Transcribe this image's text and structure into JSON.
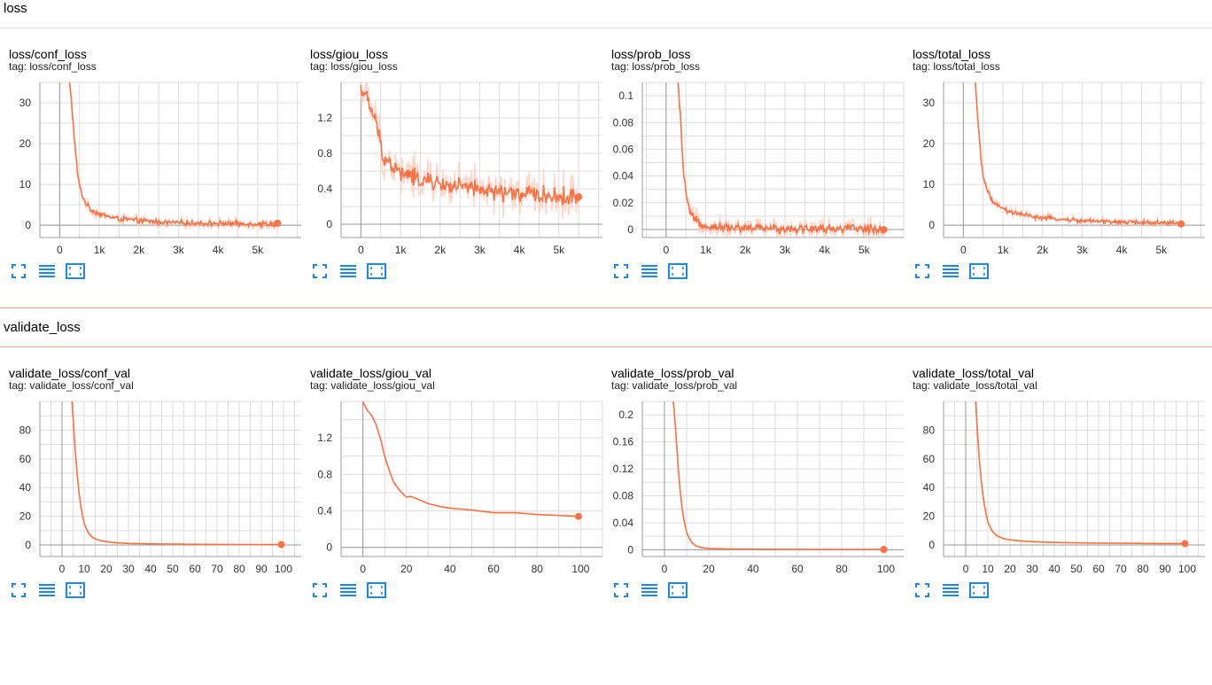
{
  "colors": {
    "accent": "#ff7043",
    "accent_light": "#ffccbc",
    "rule_gray": "#e0e0e0",
    "rule_orange": "#f4a48a",
    "grid": "#dddddd",
    "axis": "#9e9e9e",
    "button_blue": "#1e88e5"
  },
  "icons": [
    "fullscreen-icon",
    "data-table-icon",
    "fit-domain-icon"
  ],
  "sections": [
    {
      "title": "loss",
      "cards": [
        {
          "title": "loss/conf_loss",
          "tag": "tag: loss/conf_loss"
        },
        {
          "title": "loss/giou_loss",
          "tag": "tag: loss/giou_loss"
        },
        {
          "title": "loss/prob_loss",
          "tag": "tag: loss/prob_loss"
        },
        {
          "title": "loss/total_loss",
          "tag": "tag: loss/total_loss"
        }
      ]
    },
    {
      "title": "validate_loss",
      "cards": [
        {
          "title": "validate_loss/conf_val",
          "tag": "tag: validate_loss/conf_val"
        },
        {
          "title": "validate_loss/giou_val",
          "tag": "tag: validate_loss/giou_val"
        },
        {
          "title": "validate_loss/prob_val",
          "tag": "tag: validate_loss/prob_val"
        },
        {
          "title": "validate_loss/total_val",
          "tag": "tag: validate_loss/total_val"
        }
      ]
    }
  ],
  "chart_data": [
    {
      "type": "line",
      "title": "loss/conf_loss",
      "xlim": [
        -500,
        6100
      ],
      "ylim": [
        -3,
        35
      ],
      "xticks": [
        0,
        1000,
        2000,
        3000,
        4000,
        5000
      ],
      "xtick_labels": [
        "0",
        "1k",
        "2k",
        "3k",
        "4k",
        "5k"
      ],
      "yticks": [
        0,
        10,
        20,
        30
      ],
      "ytick_labels": [
        "0",
        "10",
        "20",
        "30"
      ],
      "series": [
        {
          "x": [
            250,
            300,
            350,
            400,
            450,
            500,
            600,
            700,
            800,
            1000,
            1200,
            1500,
            2000,
            2500,
            3000,
            3500,
            4000,
            4500,
            5000,
            5500
          ],
          "y": [
            35,
            30,
            24,
            18,
            13,
            9.5,
            6.5,
            4.8,
            3.8,
            2.8,
            2.2,
            1.6,
            1.1,
            0.8,
            0.6,
            0.5,
            0.45,
            0.4,
            0.35,
            0.3
          ]
        }
      ],
      "noise": 0.35,
      "grid": true
    },
    {
      "type": "line",
      "title": "loss/giou_loss",
      "xlim": [
        -500,
        6100
      ],
      "ylim": [
        -0.15,
        1.6
      ],
      "xticks": [
        0,
        1000,
        2000,
        3000,
        4000,
        5000
      ],
      "xtick_labels": [
        "0",
        "1k",
        "2k",
        "3k",
        "4k",
        "5k"
      ],
      "yticks": [
        0,
        0.4,
        0.8,
        1.2
      ],
      "ytick_labels": [
        "0",
        "0.4",
        "0.8",
        "1.2"
      ],
      "series": [
        {
          "x": [
            0,
            100,
            200,
            300,
            400,
            500,
            600,
            800,
            1000,
            1200,
            1500,
            2000,
            2500,
            3000,
            3500,
            4000,
            4500,
            5000,
            5500
          ],
          "y": [
            1.55,
            1.45,
            1.35,
            1.25,
            1.1,
            0.9,
            0.75,
            0.65,
            0.58,
            0.55,
            0.5,
            0.45,
            0.42,
            0.38,
            0.36,
            0.34,
            0.33,
            0.31,
            0.3
          ]
        }
      ],
      "noise": 0.06,
      "grid": true
    },
    {
      "type": "line",
      "title": "loss/prob_loss",
      "xlim": [
        -600,
        6000
      ],
      "ylim": [
        -0.006,
        0.11
      ],
      "xticks": [
        0,
        1000,
        2000,
        3000,
        4000,
        5000
      ],
      "xtick_labels": [
        "0",
        "1k",
        "2k",
        "3k",
        "4k",
        "5k"
      ],
      "yticks": [
        0,
        0.02,
        0.04,
        0.06,
        0.08,
        0.1
      ],
      "ytick_labels": [
        "0",
        "0.02",
        "0.04",
        "0.06",
        "0.08",
        "0.1"
      ],
      "series": [
        {
          "x": [
            300,
            350,
            400,
            450,
            500,
            550,
            600,
            700,
            800,
            1000,
            1500,
            2000,
            3000,
            4000,
            5000,
            5500
          ],
          "y": [
            0.11,
            0.09,
            0.06,
            0.04,
            0.028,
            0.018,
            0.012,
            0.008,
            0.005,
            0.003,
            0.0015,
            0.001,
            0.0008,
            0.0006,
            0.0005,
            0.0004
          ]
        }
      ],
      "noise": 0.002,
      "grid": true
    },
    {
      "type": "line",
      "title": "loss/total_loss",
      "xlim": [
        -500,
        6100
      ],
      "ylim": [
        -3,
        35
      ],
      "xticks": [
        0,
        1000,
        2000,
        3000,
        4000,
        5000
      ],
      "xtick_labels": [
        "0",
        "1k",
        "2k",
        "3k",
        "4k",
        "5k"
      ],
      "yticks": [
        0,
        10,
        20,
        30
      ],
      "ytick_labels": [
        "0",
        "10",
        "20",
        "30"
      ],
      "series": [
        {
          "x": [
            300,
            350,
            400,
            450,
            500,
            600,
            700,
            800,
            1000,
            1200,
            1500,
            2000,
            2500,
            3000,
            3500,
            4000,
            4500,
            5000,
            5500
          ],
          "y": [
            35,
            28,
            22,
            16,
            12,
            8.5,
            6.5,
            5.2,
            4,
            3.2,
            2.5,
            1.8,
            1.4,
            1.1,
            0.9,
            0.8,
            0.7,
            0.6,
            0.5
          ]
        }
      ],
      "noise": 0.3,
      "grid": true
    },
    {
      "type": "line",
      "title": "validate_loss/conf_val",
      "xlim": [
        -10,
        108
      ],
      "ylim": [
        -8,
        100
      ],
      "xticks": [
        0,
        10,
        20,
        30,
        40,
        50,
        60,
        70,
        80,
        90,
        100
      ],
      "xtick_labels": [
        "0",
        "10",
        "20",
        "30",
        "40",
        "50",
        "60",
        "70",
        "80",
        "90",
        "100"
      ],
      "yticks": [
        0,
        20,
        40,
        60,
        80
      ],
      "ytick_labels": [
        "0",
        "20",
        "40",
        "60",
        "80"
      ],
      "series": [
        {
          "x": [
            4.5,
            5,
            6,
            7,
            8,
            9,
            10,
            12,
            14,
            17,
            20,
            25,
            30,
            40,
            50,
            60,
            70,
            80,
            90,
            99
          ],
          "y": [
            100,
            88,
            65,
            46,
            32,
            22,
            15,
            8,
            5,
            3.2,
            2.3,
            1.5,
            1.1,
            0.8,
            0.6,
            0.5,
            0.4,
            0.35,
            0.3,
            0.3
          ]
        }
      ],
      "noise": 0,
      "grid": true
    },
    {
      "type": "line",
      "title": "validate_loss/giou_val",
      "xlim": [
        -10,
        110
      ],
      "ylim": [
        -0.1,
        1.6
      ],
      "xticks": [
        0,
        20,
        40,
        60,
        80,
        100
      ],
      "xtick_labels": [
        "0",
        "20",
        "40",
        "60",
        "80",
        "100"
      ],
      "yticks": [
        0,
        0.4,
        0.8,
        1.2
      ],
      "ytick_labels": [
        "0",
        "0.4",
        "0.8",
        "1.2"
      ],
      "series": [
        {
          "x": [
            0,
            2,
            4,
            6,
            8,
            10,
            12,
            14,
            17,
            20,
            22,
            25,
            30,
            35,
            40,
            50,
            60,
            70,
            80,
            90,
            99
          ],
          "y": [
            1.6,
            1.5,
            1.45,
            1.35,
            1.2,
            1.0,
            0.85,
            0.72,
            0.62,
            0.55,
            0.56,
            0.53,
            0.48,
            0.45,
            0.43,
            0.41,
            0.38,
            0.38,
            0.36,
            0.35,
            0.34
          ]
        }
      ],
      "noise": 0,
      "grid": true
    },
    {
      "type": "line",
      "title": "validate_loss/prob_val",
      "xlim": [
        -10,
        108
      ],
      "ylim": [
        -0.01,
        0.22
      ],
      "xticks": [
        0,
        20,
        40,
        60,
        80,
        100
      ],
      "xtick_labels": [
        "0",
        "20",
        "40",
        "60",
        "80",
        "100"
      ],
      "yticks": [
        0,
        0.04,
        0.08,
        0.12,
        0.16,
        0.2
      ],
      "ytick_labels": [
        "0",
        "0.04",
        "0.08",
        "0.12",
        "0.16",
        "0.2"
      ],
      "series": [
        {
          "x": [
            4,
            5,
            6,
            7,
            8,
            9,
            10,
            12,
            14,
            17,
            20,
            30,
            40,
            60,
            80,
            99
          ],
          "y": [
            0.22,
            0.18,
            0.13,
            0.09,
            0.06,
            0.04,
            0.025,
            0.012,
            0.006,
            0.003,
            0.002,
            0.001,
            0.0008,
            0.0006,
            0.0005,
            0.0005
          ]
        }
      ],
      "noise": 0,
      "grid": true
    },
    {
      "type": "line",
      "title": "validate_loss/total_val",
      "xlim": [
        -10,
        108
      ],
      "ylim": [
        -8,
        100
      ],
      "xticks": [
        0,
        10,
        20,
        30,
        40,
        50,
        60,
        70,
        80,
        90,
        100
      ],
      "xtick_labels": [
        "0",
        "10",
        "20",
        "30",
        "40",
        "50",
        "60",
        "70",
        "80",
        "90",
        "100"
      ],
      "yticks": [
        0,
        20,
        40,
        60,
        80
      ],
      "ytick_labels": [
        "0",
        "20",
        "40",
        "60",
        "80"
      ],
      "series": [
        {
          "x": [
            4.5,
            5,
            6,
            7,
            8,
            9,
            10,
            12,
            14,
            17,
            20,
            25,
            30,
            40,
            50,
            60,
            70,
            80,
            90,
            99
          ],
          "y": [
            100,
            86,
            62,
            45,
            32,
            23,
            16,
            9.5,
            6.5,
            4.5,
            3.6,
            2.8,
            2.3,
            1.8,
            1.5,
            1.3,
            1.2,
            1.1,
            1.0,
            1.0
          ]
        }
      ],
      "noise": 0,
      "grid": true
    }
  ]
}
